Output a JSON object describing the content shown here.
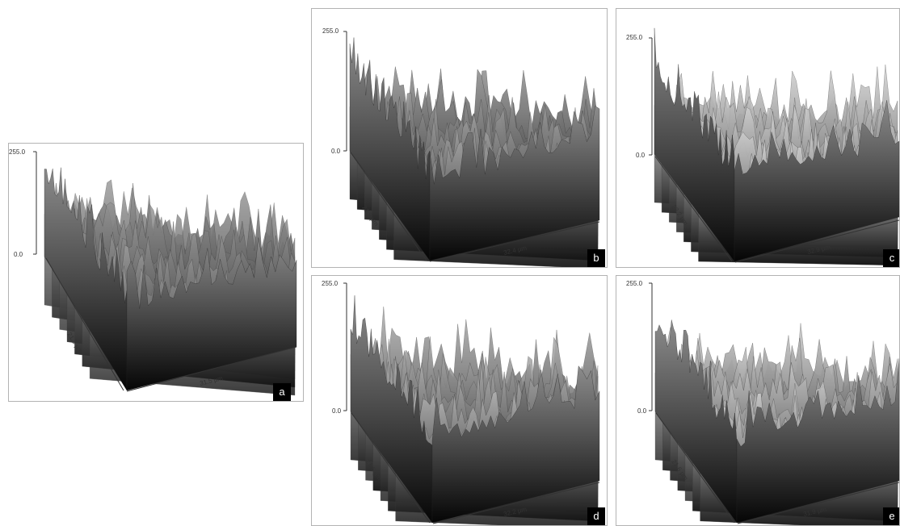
{
  "panels": [
    {
      "id": "a",
      "label": "a",
      "z_max": "255.0",
      "z_min": "0.0",
      "y_dim": "21.3 µm",
      "x_dim": "31.5 µm"
    },
    {
      "id": "b",
      "label": "b",
      "z_max": "255.0",
      "z_min": "0.0",
      "y_dim": "21.9 µm",
      "x_dim": "32.4 µm"
    },
    {
      "id": "c",
      "label": "c",
      "z_max": "255.0",
      "z_min": "0.0",
      "y_dim": "22.2 µm",
      "x_dim": "32.9 µm"
    },
    {
      "id": "d",
      "label": "d",
      "z_max": "255.0",
      "z_min": "0.0",
      "y_dim": "21.6 µm",
      "x_dim": "32.2 µm"
    },
    {
      "id": "e",
      "label": "e",
      "z_max": "255.0",
      "z_min": "0.0",
      "y_dim": "21.6 µm",
      "x_dim": "31.9 µm"
    }
  ]
}
